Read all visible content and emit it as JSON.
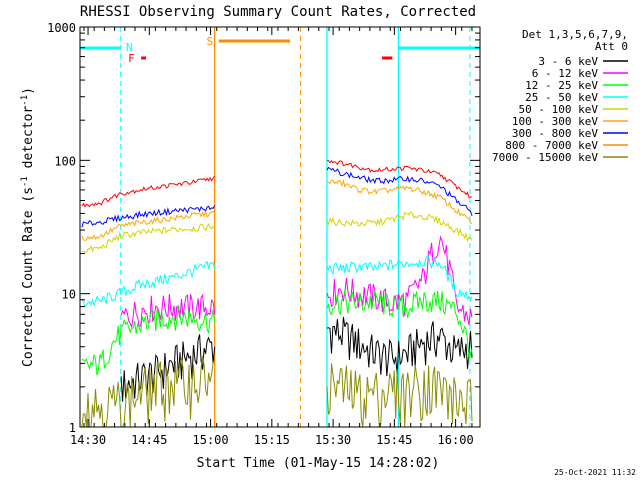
{
  "chart_data": {
    "type": "line",
    "title": "RHESSI Observing Summary Count Rates, Corrected",
    "xlabel": "Start Time (01-May-15 14:28:02)",
    "ylabel": "Corrected Count Rate (s⁻¹ detector⁻¹)",
    "ylabel_main": "Corrected Count Rate (s",
    "ylabel_sup1": "-1",
    "ylabel_mid": " detector",
    "ylabel_sup2": "-1",
    "ylabel_end": ")",
    "yscale": "log",
    "ylim": [
      1,
      1000
    ],
    "xlim_minutes": [
      -1.97,
      95.97
    ],
    "x_ticks": [
      {
        "label": "14:30",
        "min": 0
      },
      {
        "label": "14:45",
        "min": 15
      },
      {
        "label": "15:00",
        "min": 30
      },
      {
        "label": "15:15",
        "min": 45
      },
      {
        "label": "15:30",
        "min": 60
      },
      {
        "label": "15:45",
        "min": 75
      },
      {
        "label": "16:00",
        "min": 90
      }
    ],
    "y_ticks": [
      {
        "label": "1",
        "value": 1
      },
      {
        "label": "10",
        "value": 10
      },
      {
        "label": "100",
        "value": 100
      },
      {
        "label": "1000",
        "value": 1000
      }
    ],
    "legend_placement": "right",
    "legend_header": [
      "Det 1,3,5,6,7,9,",
      "Att 0"
    ],
    "series": [
      {
        "name": "3 - 6 keV",
        "color": "#000000",
        "pre": [
          null,
          null,
          2.0,
          2.3,
          2.6,
          3.1,
          3.6,
          4.1
        ],
        "post": [
          5.5,
          5.0,
          4.2,
          3.6,
          3.3,
          3.6,
          4.4,
          4.8,
          3.6,
          4.2
        ]
      },
      {
        "name": "6 - 12 keV",
        "color": "#ff00ff",
        "pre": [
          null,
          null,
          6.5,
          7.5,
          8.0,
          8.0,
          8.0,
          8.0
        ],
        "post": [
          10.0,
          11.0,
          10.0,
          9.5,
          8.5,
          9.0,
          13.0,
          27.0,
          8.0,
          6.5
        ]
      },
      {
        "name": "12 - 25 keV",
        "color": "#00ff00",
        "pre": [
          2.8,
          3.0,
          5.0,
          5.8,
          6.5,
          6.8,
          6.6,
          6.2
        ],
        "post": [
          8.5,
          8.8,
          8.5,
          8.8,
          8.2,
          8.0,
          9.0,
          8.8,
          7.5,
          3.2
        ]
      },
      {
        "name": "25 - 50 keV",
        "color": "#00ffff",
        "pre": [
          8.5,
          8.8,
          10.0,
          11.5,
          12.5,
          13.5,
          15.0,
          16.5
        ],
        "post": [
          15.5,
          15.5,
          16.0,
          15.5,
          16.5,
          17.0,
          17.5,
          17.0,
          10.5,
          9.5
        ]
      },
      {
        "name": "50 - 100 keV",
        "color": "#d4d400",
        "pre": [
          21.0,
          22.0,
          27.0,
          28.5,
          29.5,
          30.5,
          31.0,
          32.0
        ],
        "post": [
          35.0,
          34.0,
          33.5,
          34.0,
          36.0,
          39.0,
          38.0,
          35.0,
          30.0,
          25.0
        ]
      },
      {
        "name": "100 - 300 keV",
        "color": "#ffa500",
        "pre": [
          26.0,
          27.0,
          32.0,
          34.0,
          35.5,
          37.0,
          39.0,
          40.0
        ],
        "post": [
          70.0,
          67.0,
          60.0,
          58.0,
          60.0,
          62.0,
          58.0,
          53.0,
          42.0,
          34.0
        ]
      },
      {
        "name": "300 - 800 keV",
        "color": "#0000ff",
        "pre": [
          33.0,
          34.5,
          37.0,
          39.0,
          40.5,
          42.0,
          43.0,
          44.0
        ],
        "post": [
          86.0,
          80.0,
          74.0,
          70.0,
          71.0,
          73.0,
          70.0,
          64.0,
          50.0,
          40.0
        ]
      },
      {
        "name": "800 - 7000 keV",
        "color": "#ff8c00",
        "pre": [
          null,
          null,
          null,
          null,
          null,
          null,
          null,
          null
        ],
        "post": [
          null,
          null,
          null,
          null,
          null,
          null,
          null,
          null,
          null,
          null
        ]
      },
      {
        "name": "7000 - 15000 keV",
        "color": "#8b8b00",
        "pre": [
          1.5,
          1.5,
          1.5,
          1.8,
          2.1,
          2.2,
          2.3,
          2.4
        ],
        "post": [
          2.2,
          2.0,
          1.8,
          1.8,
          1.9,
          1.9,
          2.2,
          2.0,
          1.6,
          1.6
        ]
      }
    ],
    "red_series_pre": [
      46,
      48,
      56,
      60,
      63,
      66,
      69,
      74
    ],
    "red_series_post": [
      100,
      95,
      89,
      84,
      86,
      88,
      84,
      78,
      64,
      52
    ],
    "series_time_ranges": {
      "pre_minutes": [
        -1.5,
        31.0
      ],
      "post_minutes": [
        58.5,
        94.0
      ]
    },
    "annotations": [
      {
        "label": "N",
        "color": "#00ffff"
      },
      {
        "label": "F",
        "color": "#ff0000"
      },
      {
        "label": "S",
        "color": "#ff8c00"
      }
    ],
    "footer_date": "25-Oct-2021 11:32"
  }
}
